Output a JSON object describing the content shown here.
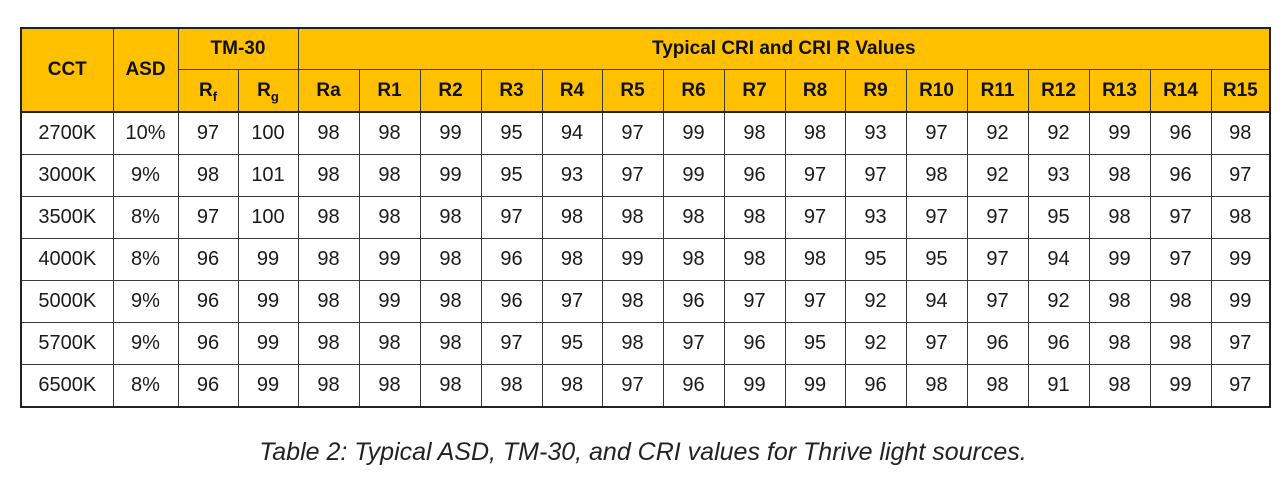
{
  "table": {
    "headers": {
      "cct": "CCT",
      "asd": "ASD",
      "tm30": "TM-30",
      "cri_group": "Typical CRI and CRI R Values",
      "rf_base": "R",
      "rf_sub": "f",
      "rg_base": "R",
      "rg_sub": "g",
      "cri_cols": [
        "Ra",
        "R1",
        "R2",
        "R3",
        "R4",
        "R5",
        "R6",
        "R7",
        "R8",
        "R9",
        "R10",
        "R11",
        "R12",
        "R13",
        "R14",
        "R15"
      ]
    },
    "rows": [
      [
        "2700K",
        "10%",
        "97",
        "100",
        "98",
        "98",
        "99",
        "95",
        "94",
        "97",
        "99",
        "98",
        "98",
        "93",
        "97",
        "92",
        "92",
        "99",
        "96",
        "98"
      ],
      [
        "3000K",
        "9%",
        "98",
        "101",
        "98",
        "98",
        "99",
        "95",
        "93",
        "97",
        "99",
        "96",
        "97",
        "97",
        "98",
        "92",
        "93",
        "98",
        "96",
        "97"
      ],
      [
        "3500K",
        "8%",
        "97",
        "100",
        "98",
        "98",
        "98",
        "97",
        "98",
        "98",
        "98",
        "98",
        "97",
        "93",
        "97",
        "97",
        "95",
        "98",
        "97",
        "98"
      ],
      [
        "4000K",
        "8%",
        "96",
        "99",
        "98",
        "99",
        "98",
        "96",
        "98",
        "99",
        "98",
        "98",
        "98",
        "95",
        "95",
        "97",
        "94",
        "99",
        "97",
        "99"
      ],
      [
        "5000K",
        "9%",
        "96",
        "99",
        "98",
        "99",
        "98",
        "96",
        "97",
        "98",
        "96",
        "97",
        "97",
        "92",
        "94",
        "97",
        "92",
        "98",
        "98",
        "99"
      ],
      [
        "5700K",
        "9%",
        "96",
        "99",
        "98",
        "98",
        "98",
        "97",
        "95",
        "98",
        "97",
        "96",
        "95",
        "92",
        "97",
        "96",
        "96",
        "98",
        "98",
        "97"
      ],
      [
        "6500K",
        "8%",
        "96",
        "99",
        "98",
        "98",
        "98",
        "98",
        "98",
        "97",
        "96",
        "99",
        "99",
        "96",
        "98",
        "98",
        "91",
        "98",
        "99",
        "97"
      ]
    ],
    "header_color": "#ffc000"
  },
  "caption": "Table 2:  Typical ASD, TM-30, and CRI values for Thrive light sources."
}
